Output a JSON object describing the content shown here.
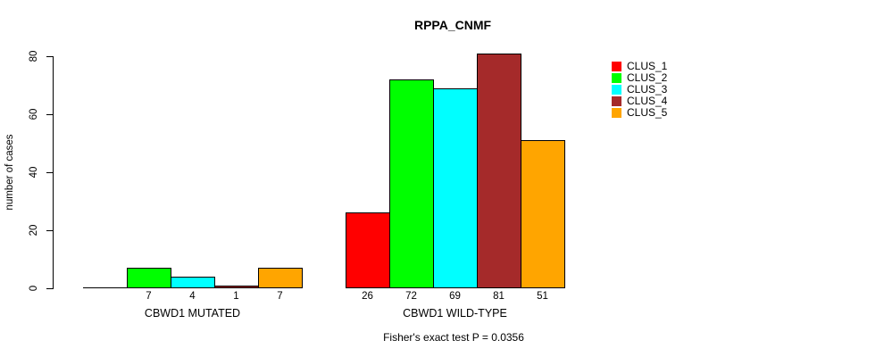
{
  "chart_data": {
    "type": "bar",
    "title": "RPPA_CNMF",
    "ylabel": "number of cases",
    "xlabel": "",
    "annotation": "Fisher's exact test P = 0.0356",
    "categories": [
      "CBWD1 MUTATED",
      "CBWD1 WILD-TYPE"
    ],
    "ylim": [
      0,
      80
    ],
    "yticks": [
      0,
      20,
      40,
      60,
      80
    ],
    "grid": false,
    "legend_position": "right",
    "series": [
      {
        "name": "CLUS_1",
        "color": "#FF0000",
        "values": [
          0,
          26
        ],
        "bar_labels": [
          "",
          "26"
        ]
      },
      {
        "name": "CLUS_2",
        "color": "#00FF00",
        "values": [
          7,
          72
        ],
        "bar_labels": [
          "7",
          "72"
        ]
      },
      {
        "name": "CLUS_3",
        "color": "#00FFFF",
        "values": [
          4,
          69
        ],
        "bar_labels": [
          "4",
          "69"
        ]
      },
      {
        "name": "CLUS_4",
        "color": "#A52A2A",
        "values": [
          1,
          81
        ],
        "bar_labels": [
          "1",
          "81"
        ]
      },
      {
        "name": "CLUS_5",
        "color": "#FFA500",
        "values": [
          7,
          51
        ],
        "bar_labels": [
          "7",
          "51"
        ]
      }
    ]
  }
}
